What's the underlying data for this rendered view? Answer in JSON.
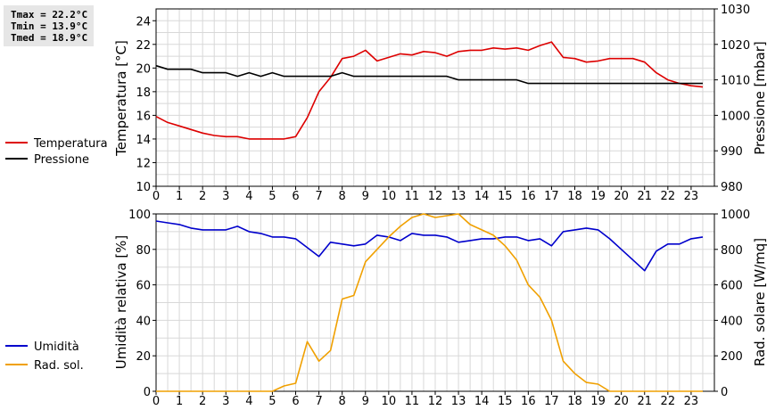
{
  "stats": {
    "tmax": "Tmax = 22.2°C",
    "tmin": "Tmin = 13.9°C",
    "tmed": "Tmed = 18.9°C"
  },
  "colors": {
    "temperature": "#dd0000",
    "pressure": "#000000",
    "humidity": "#0000cc",
    "solar": "#f0a000",
    "grid": "#d8d8d8"
  },
  "chart_data": [
    {
      "type": "line",
      "x_ticks": [
        "0",
        "1",
        "2",
        "3",
        "4",
        "5",
        "6",
        "7",
        "8",
        "9",
        "10",
        "11",
        "12",
        "13",
        "14",
        "15",
        "16",
        "17",
        "18",
        "19",
        "20",
        "21",
        "22",
        "23"
      ],
      "xlim": [
        0,
        24
      ],
      "ylabel_left": "Temperatura [°C]",
      "ylabel_right": "Pressione [mbar]",
      "ylim_left": [
        10,
        25
      ],
      "ylim_right": [
        980,
        1030
      ],
      "y_ticks_left": [
        "10",
        "12",
        "14",
        "16",
        "18",
        "20",
        "22",
        "24"
      ],
      "y_ticks_right": [
        "980",
        "990",
        "1000",
        "1010",
        "1020",
        "1030"
      ],
      "grid": true,
      "series": [
        {
          "name": "Temperatura",
          "axis": "left",
          "color_key": "temperature",
          "x": [
            0,
            0.5,
            1,
            1.5,
            2,
            2.5,
            3,
            3.5,
            4,
            4.5,
            5,
            5.5,
            6,
            6.5,
            7,
            7.5,
            8,
            8.5,
            9,
            9.5,
            10,
            10.5,
            11,
            11.5,
            12,
            12.5,
            13,
            13.5,
            14,
            14.5,
            15,
            15.5,
            16,
            16.5,
            17,
            17.5,
            18,
            18.5,
            19,
            19.5,
            20,
            20.5,
            21,
            21.5,
            22,
            22.5,
            23,
            23.5
          ],
          "values": [
            15.9,
            15.4,
            15.1,
            14.8,
            14.5,
            14.3,
            14.2,
            14.2,
            14.0,
            14.0,
            14.0,
            14.0,
            14.2,
            15.8,
            18.0,
            19.2,
            20.8,
            21.0,
            21.5,
            20.6,
            20.9,
            21.2,
            21.1,
            21.4,
            21.3,
            21.0,
            21.4,
            21.5,
            21.5,
            21.7,
            21.6,
            21.7,
            21.5,
            21.9,
            22.2,
            20.9,
            20.8,
            20.5,
            20.6,
            20.8,
            20.8,
            20.8,
            20.5,
            19.6,
            19.0,
            18.7,
            18.5,
            18.4
          ]
        },
        {
          "name": "Pressione",
          "axis": "right",
          "color_key": "pressure",
          "x": [
            0,
            0.5,
            1,
            1.5,
            2,
            2.5,
            3,
            3.5,
            4,
            4.5,
            5,
            5.5,
            6,
            6.5,
            7,
            7.5,
            8,
            8.5,
            9,
            9.5,
            10,
            10.5,
            11,
            11.5,
            12,
            12.5,
            13,
            13.5,
            14,
            14.5,
            15,
            15.5,
            16,
            16.5,
            17,
            17.5,
            18,
            18.5,
            19,
            19.5,
            20,
            20.5,
            21,
            21.5,
            22,
            22.5,
            23,
            23.5
          ],
          "values": [
            1014,
            1013,
            1013,
            1013,
            1012,
            1012,
            1012,
            1011,
            1012,
            1011,
            1012,
            1011,
            1011,
            1011,
            1011,
            1011,
            1012,
            1011,
            1011,
            1011,
            1011,
            1011,
            1011,
            1011,
            1011,
            1011,
            1010,
            1010,
            1010,
            1010,
            1010,
            1010,
            1009,
            1009,
            1009,
            1009,
            1009,
            1009,
            1009,
            1009,
            1009,
            1009,
            1009,
            1009,
            1009,
            1009,
            1009,
            1009
          ]
        }
      ]
    },
    {
      "type": "line",
      "x_ticks": [
        "0",
        "1",
        "2",
        "3",
        "4",
        "5",
        "6",
        "7",
        "8",
        "9",
        "10",
        "11",
        "12",
        "13",
        "14",
        "15",
        "16",
        "17",
        "18",
        "19",
        "20",
        "21",
        "22",
        "23"
      ],
      "xlim": [
        0,
        24
      ],
      "ylabel_left": "Umidità relativa [%]",
      "ylabel_right": "Rad. solare [W/mq]",
      "ylim_left": [
        0,
        100
      ],
      "ylim_right": [
        0,
        1000
      ],
      "y_ticks_left": [
        "0",
        "20",
        "40",
        "60",
        "80",
        "100"
      ],
      "y_ticks_right": [
        "0",
        "200",
        "400",
        "600",
        "800",
        "1000"
      ],
      "grid": true,
      "series": [
        {
          "name": "Umidità",
          "axis": "left",
          "color_key": "humidity",
          "x": [
            0,
            0.5,
            1,
            1.5,
            2,
            2.5,
            3,
            3.5,
            4,
            4.5,
            5,
            5.5,
            6,
            6.5,
            7,
            7.5,
            8,
            8.5,
            9,
            9.5,
            10,
            10.5,
            11,
            11.5,
            12,
            12.5,
            13,
            13.5,
            14,
            14.5,
            15,
            15.5,
            16,
            16.5,
            17,
            17.5,
            18,
            18.5,
            19,
            19.5,
            20,
            20.5,
            21,
            21.5,
            22,
            22.5,
            23,
            23.5
          ],
          "values": [
            96,
            95,
            94,
            92,
            91,
            91,
            91,
            93,
            90,
            89,
            87,
            87,
            86,
            81,
            76,
            84,
            83,
            82,
            83,
            88,
            87,
            85,
            89,
            88,
            88,
            87,
            84,
            85,
            86,
            86,
            87,
            87,
            85,
            86,
            82,
            90,
            91,
            92,
            91,
            86,
            80,
            74,
            68,
            79,
            83,
            83,
            86,
            87
          ]
        },
        {
          "name": "Rad. sol.",
          "axis": "right",
          "color_key": "solar",
          "x": [
            0,
            0.5,
            1,
            1.5,
            2,
            2.5,
            3,
            3.5,
            4,
            4.5,
            5,
            5.5,
            6,
            6.5,
            7,
            7.5,
            8,
            8.5,
            9,
            9.5,
            10,
            10.5,
            11,
            11.5,
            12,
            12.5,
            13,
            13.5,
            14,
            14.5,
            15,
            15.5,
            16,
            16.5,
            17,
            17.5,
            18,
            18.5,
            19,
            19.5,
            20,
            20.5,
            21,
            21.5,
            22,
            22.5,
            23,
            23.5
          ],
          "values": [
            0,
            0,
            0,
            0,
            0,
            0,
            0,
            0,
            0,
            0,
            0,
            30,
            45,
            280,
            170,
            230,
            520,
            540,
            730,
            800,
            870,
            930,
            980,
            1000,
            980,
            990,
            1000,
            940,
            910,
            880,
            820,
            740,
            600,
            530,
            400,
            170,
            100,
            50,
            40,
            0,
            0,
            0,
            0,
            0,
            0,
            0,
            0,
            0
          ]
        }
      ]
    }
  ]
}
